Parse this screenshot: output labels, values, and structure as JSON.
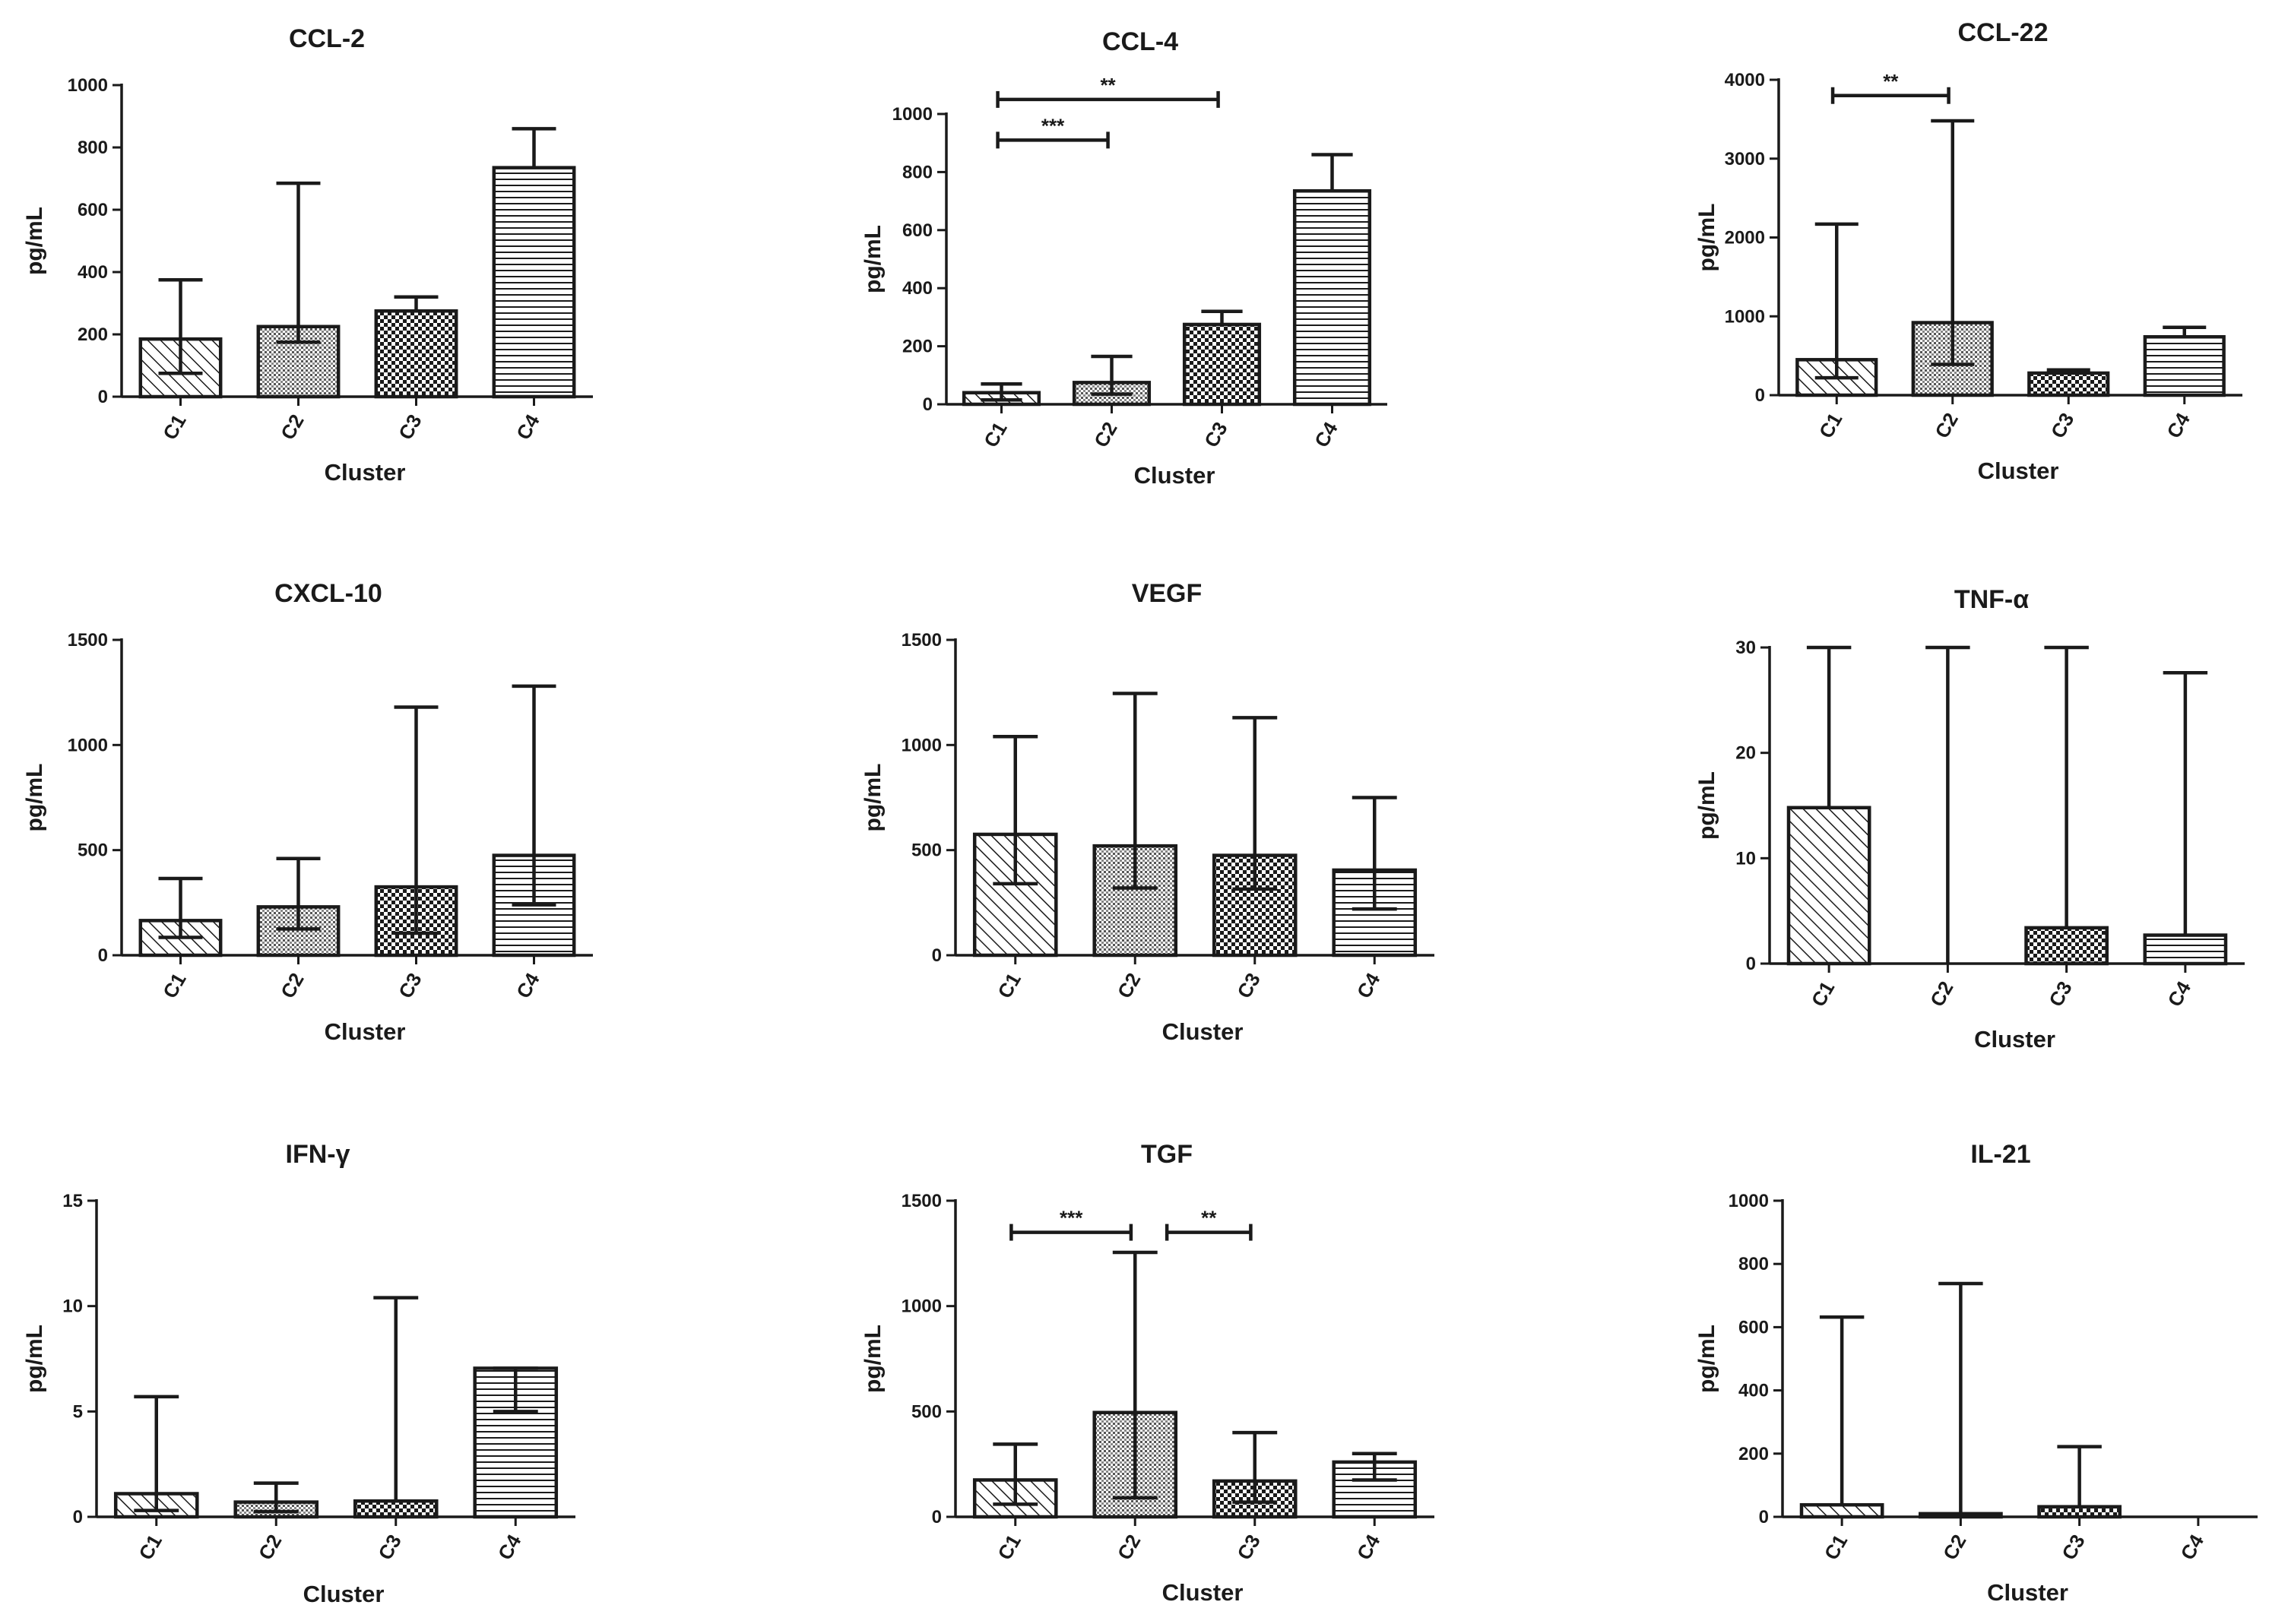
{
  "figure": {
    "colors": {
      "ink": "#1a1a1a",
      "background": "#ffffff"
    },
    "patterns": [
      "diag-hatch",
      "fine-dots",
      "checker",
      "h-lines"
    ]
  },
  "chart_data": [
    {
      "type": "bar",
      "title": "CCL-2",
      "xlabel": "Cluster",
      "ylabel": "pg/mL",
      "categories": [
        "C1",
        "C2",
        "C3",
        "C4"
      ],
      "ylim": [
        0,
        1000
      ],
      "yticks": [
        0,
        200,
        400,
        600,
        800,
        1000
      ],
      "ytick_labels": [
        "0",
        "200",
        "400",
        "600",
        "800",
        "1000"
      ],
      "values": [
        185,
        225,
        275,
        735
      ],
      "err_upper": [
        375,
        685,
        320,
        860
      ],
      "err_lower": [
        75,
        175,
        null,
        null
      ],
      "significance": []
    },
    {
      "type": "bar",
      "title": "CCL-4",
      "xlabel": "Cluster",
      "ylabel": "pg/mL",
      "categories": [
        "C1",
        "C2",
        "C3",
        "C4"
      ],
      "ylim": [
        0,
        1000
      ],
      "yticks": [
        0,
        200,
        400,
        600,
        800,
        1000
      ],
      "ytick_labels": [
        "0",
        "200",
        "400",
        "600",
        "800",
        "1000"
      ],
      "values": [
        40,
        75,
        275,
        735
      ],
      "err_upper": [
        70,
        165,
        320,
        860
      ],
      "err_lower": [
        15,
        35,
        null,
        null
      ],
      "significance": [
        {
          "from": 0,
          "to": 1,
          "label": "***",
          "y": 910
        },
        {
          "from": 0,
          "to": 2,
          "label": "**",
          "y": 1050
        }
      ]
    },
    {
      "type": "bar",
      "title": "CCL-22",
      "xlabel": "Cluster",
      "ylabel": "pg/mL",
      "categories": [
        "C1",
        "C2",
        "C3",
        "C4"
      ],
      "ylim": [
        0,
        4000
      ],
      "yticks": [
        0,
        1000,
        2000,
        3000,
        4000
      ],
      "ytick_labels": [
        "0",
        "1000",
        "2000",
        "3000",
        "4000"
      ],
      "values": [
        450,
        920,
        280,
        740
      ],
      "err_upper": [
        2170,
        3480,
        320,
        860
      ],
      "err_lower": [
        220,
        390,
        null,
        null
      ],
      "significance": [
        {
          "from": 0,
          "to": 1,
          "label": "**",
          "y": 3800
        }
      ]
    },
    {
      "type": "bar",
      "title": "CXCL-10",
      "xlabel": "Cluster",
      "ylabel": "pg/mL",
      "categories": [
        "C1",
        "C2",
        "C3",
        "C4"
      ],
      "ylim": [
        0,
        1500
      ],
      "yticks": [
        0,
        500,
        1000,
        1500
      ],
      "ytick_labels": [
        "0",
        "500",
        "1000",
        "1500"
      ],
      "values": [
        165,
        230,
        325,
        475
      ],
      "err_upper": [
        365,
        460,
        1180,
        1280
      ],
      "err_lower": [
        85,
        125,
        105,
        240
      ],
      "significance": []
    },
    {
      "type": "bar",
      "title": "VEGF",
      "xlabel": "Cluster",
      "ylabel": "pg/mL",
      "categories": [
        "C1",
        "C2",
        "C3",
        "C4"
      ],
      "ylim": [
        0,
        1500
      ],
      "yticks": [
        0,
        500,
        1000,
        1500
      ],
      "ytick_labels": [
        "0",
        "500",
        "1000",
        "1500"
      ],
      "values": [
        575,
        520,
        475,
        405
      ],
      "err_upper": [
        1040,
        1245,
        1130,
        750
      ],
      "err_lower": [
        340,
        320,
        315,
        220
      ],
      "significance": []
    },
    {
      "type": "bar",
      "title": "TNF-α",
      "xlabel": "Cluster",
      "ylabel": "pg/mL",
      "categories": [
        "C1",
        "C2",
        "C3",
        "C4"
      ],
      "ylim": [
        0,
        30
      ],
      "yticks": [
        0,
        10,
        20,
        30
      ],
      "ytick_labels": [
        "0",
        "10",
        "20",
        "30"
      ],
      "values": [
        14.8,
        0.1,
        3.4,
        2.7
      ],
      "err_upper": [
        30,
        30,
        30,
        27.6
      ],
      "err_lower": [
        null,
        null,
        null,
        null
      ],
      "significance": []
    },
    {
      "type": "bar",
      "title": "IFN-γ",
      "xlabel": "Cluster",
      "ylabel": "pg/mL",
      "categories": [
        "C1",
        "C2",
        "C3",
        "C4"
      ],
      "ylim": [
        0,
        15
      ],
      "yticks": [
        0,
        5,
        10,
        15
      ],
      "ytick_labels": [
        "0",
        "5",
        "10",
        "15"
      ],
      "values": [
        1.1,
        0.7,
        0.75,
        7.05
      ],
      "err_upper": [
        5.7,
        1.6,
        10.4,
        7.05
      ],
      "err_lower": [
        0.3,
        0.25,
        null,
        5.0
      ],
      "significance": []
    },
    {
      "type": "bar",
      "title": "TGF",
      "xlabel": "Cluster",
      "ylabel": "pg/mL",
      "categories": [
        "C1",
        "C2",
        "C3",
        "C4"
      ],
      "ylim": [
        0,
        1500
      ],
      "yticks": [
        0,
        500,
        1000,
        1500
      ],
      "ytick_labels": [
        "0",
        "500",
        "1000",
        "1500"
      ],
      "values": [
        175,
        495,
        170,
        260
      ],
      "err_upper": [
        345,
        1255,
        400,
        300
      ],
      "err_lower": [
        60,
        90,
        70,
        175
      ],
      "significance": [
        {
          "from": 0,
          "to": 1,
          "label": "***",
          "y": 1350
        },
        {
          "from": 1.3,
          "to": 2,
          "label": "**",
          "y": 1350
        }
      ]
    },
    {
      "type": "bar",
      "title": "IL-21",
      "xlabel": "Cluster",
      "ylabel": "pg/mL",
      "categories": [
        "C1",
        "C2",
        "C3",
        "C4"
      ],
      "ylim": [
        0,
        1000
      ],
      "yticks": [
        0,
        200,
        400,
        600,
        800,
        1000
      ],
      "ytick_labels": [
        "0",
        "200",
        "400",
        "600",
        "800",
        "1000"
      ],
      "values": [
        38,
        10,
        32,
        0
      ],
      "err_upper": [
        632,
        738,
        222,
        null
      ],
      "err_lower": [
        null,
        null,
        null,
        null
      ],
      "significance": []
    }
  ]
}
